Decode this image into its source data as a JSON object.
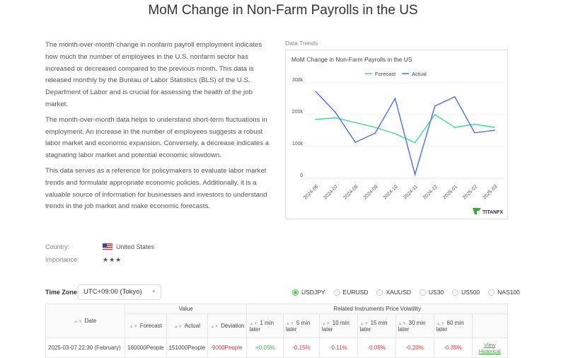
{
  "title": "MoM Change in Non-Farm Payrolls in the US",
  "description": [
    "The month-over-month change in nonfarm payroll employment indicates how much the number of employees in the U.S. nonfarm sector has increased or decreased compared to the previous month. This data is released monthly by the Bureau of Labor Statistics (BLS) of the U.S. Department of Labor and is crucial for assessing the health of the job market.",
    "The month-over-month data helps to understand short-term fluctuations in employment. An increase in the number of employees suggests a robust labor market and economic expansion. Conversely, a decrease indicates a stagnating labor market and potential economic slowdown.",
    "This data serves as a reference for policymakers to evaluate labor market trends and formulate appropriate economic policies. Additionally, it is a valuable source of information for businesses and investors to understand trends in the job market and make economic forecasts."
  ],
  "meta": {
    "country_label": "Country:",
    "country": "United States",
    "importance_label": "Importance:",
    "importance": "★★★"
  },
  "data_trends_label": "Data Trends",
  "chart_data": {
    "type": "line",
    "title": "MoM Change in Non-Farm Payrolls in the US",
    "categories": [
      "2024-06",
      "2024-07",
      "2024-08",
      "2024-09",
      "2024-10",
      "2024-11",
      "2024-12",
      "2025-01",
      "2025-02",
      "2025-03"
    ],
    "yticks": [
      "0",
      "100k",
      "200k",
      "300k"
    ],
    "ylim": [
      0,
      300000
    ],
    "legend": "top",
    "series": [
      {
        "name": "Forecast",
        "color": "#3ddc97",
        "values": [
          185000,
          190000,
          175000,
          160000,
          140000,
          112000,
          200000,
          160000,
          170000,
          160000
        ]
      },
      {
        "name": "Actual",
        "color": "#4a6cf7",
        "values": [
          273000,
          207000,
          113000,
          142000,
          251000,
          12000,
          227000,
          256000,
          143000,
          151000
        ]
      }
    ],
    "logo": "TITANFX"
  },
  "timezone": {
    "label": "Time Zone:",
    "value": "UTC+09:00 (Tokyo)"
  },
  "instruments": [
    {
      "label": "USDJPY",
      "selected": true
    },
    {
      "label": "EURUSD"
    },
    {
      "label": "XAUUSD"
    },
    {
      "label": "US30"
    },
    {
      "label": "US500"
    },
    {
      "label": "NAS100"
    }
  ],
  "table": {
    "date": "Date",
    "value": "Value",
    "volatility": "Related Instruments Price Volatility",
    "forecast": "Forecast",
    "actual": "Actual",
    "deviation": "Deviation",
    "cols": [
      "1 min later",
      "5 min later",
      "10 min later",
      "15 min later",
      "30 min later",
      "60 min later"
    ],
    "rows": [
      {
        "date": "2025-03-07 22:30 (February)",
        "forecast": "160000People",
        "actual": "151000People",
        "deviation": "-9000People",
        "vals": [
          "+0.05%",
          "-0.15%",
          "-0.11%",
          "-0.05%",
          "-0.20%",
          "-0.35%"
        ],
        "link": "View Historical"
      }
    ]
  }
}
